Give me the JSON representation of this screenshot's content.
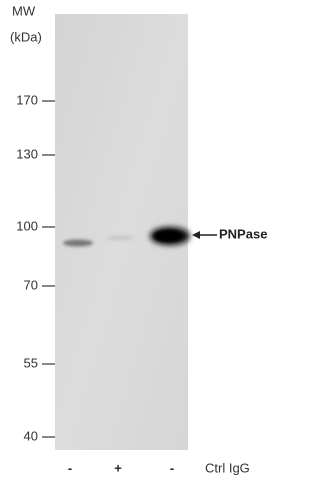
{
  "header": {
    "mw": "MW",
    "unit": "(kDa)"
  },
  "markers": [
    "170",
    "130",
    "100",
    "70",
    "55",
    "40"
  ],
  "band_label": "PNPase",
  "lanes": [
    "-",
    "+",
    "-"
  ],
  "lane_title": "Ctrl IgG"
}
